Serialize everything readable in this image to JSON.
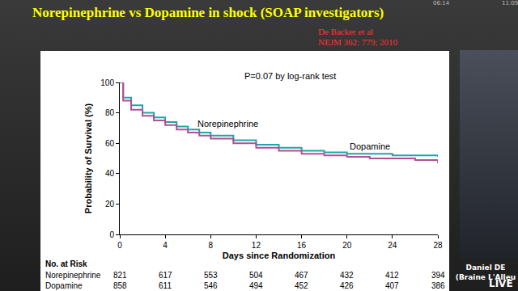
{
  "slide": {
    "citation": [
      "De Backer et al",
      "NEJM 362: 779; 2010"
    ],
    "speaker": [
      "Daniel DE",
      "(Braine L'Alleu"
    ],
    "clock": [
      "06:14",
      "11:09"
    ],
    "logo": "LIVE"
  },
  "chart_data": {
    "type": "line",
    "line_style": "step",
    "title": "Norepinephrine vs Dopamine in shock (SOAP investigators)",
    "x_label": "Days since Randomization",
    "y_label": "Probability of Survival (%)",
    "x": [
      0,
      0.3,
      1,
      2,
      3,
      4,
      5,
      6,
      7,
      8,
      10,
      12,
      14,
      16,
      18,
      20,
      22,
      24,
      26,
      28
    ],
    "series": [
      {
        "name": "Norepinephrine",
        "color": "#1fa5a8",
        "values": [
          100,
          90,
          85,
          80,
          77,
          74,
          71,
          69,
          67,
          65,
          62,
          59,
          57,
          55,
          54,
          53,
          53,
          52,
          52,
          51
        ],
        "label_at": [
          9.5,
          73
        ]
      },
      {
        "name": "Dopamine",
        "color": "#b24f94",
        "values": [
          100,
          88,
          82,
          78,
          75,
          72,
          69,
          67,
          65,
          63,
          60,
          57,
          55,
          53,
          52,
          51,
          50,
          50,
          49,
          47
        ],
        "label_at": [
          22,
          58
        ]
      }
    ],
    "annotations": [
      {
        "text": "P=0.07 by log-rank test",
        "x": 15,
        "y": 100
      }
    ],
    "xlim": [
      0,
      28
    ],
    "xticks": [
      0,
      4,
      8,
      12,
      16,
      20,
      24,
      28
    ],
    "ylim": [
      0,
      100
    ],
    "yticks": [
      0,
      20,
      40,
      60,
      80,
      100
    ],
    "grid": false,
    "risk_table": {
      "title": "No. at Risk",
      "days": [
        0,
        4,
        8,
        12,
        16,
        20,
        24,
        28
      ],
      "rows": [
        {
          "name": "Norepinephrine",
          "values": [
            821,
            617,
            553,
            504,
            467,
            432,
            412,
            394
          ]
        },
        {
          "name": "Dopamine",
          "values": [
            858,
            611,
            546,
            494,
            452,
            426,
            407,
            386
          ]
        }
      ]
    }
  }
}
